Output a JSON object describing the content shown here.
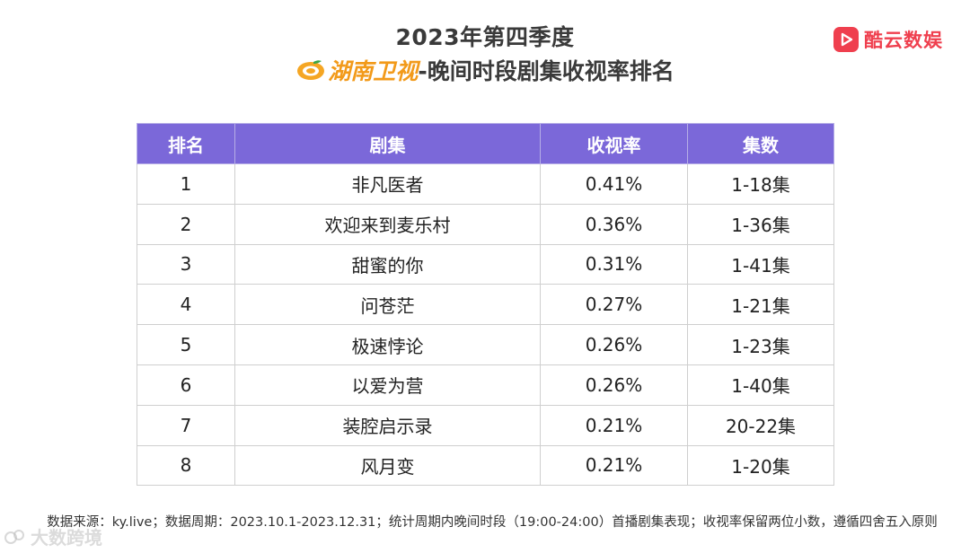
{
  "header": {
    "title_line1": "2023年第四季度",
    "channel_name": "湖南卫视",
    "title_suffix": "-晚间时段剧集收视率排名"
  },
  "brand": {
    "name": "酷云数娱",
    "color": "#ef3f4e"
  },
  "table": {
    "header_color": "#7b68d9",
    "columns": [
      "排名",
      "剧集",
      "收视率",
      "集数"
    ],
    "rows": [
      [
        "1",
        "非凡医者",
        "0.41%",
        "1-18集"
      ],
      [
        "2",
        "欢迎来到麦乐村",
        "0.36%",
        "1-36集"
      ],
      [
        "3",
        "甜蜜的你",
        "0.31%",
        "1-41集"
      ],
      [
        "4",
        "问苍茫",
        "0.27%",
        "1-21集"
      ],
      [
        "5",
        "极速悖论",
        "0.26%",
        "1-23集"
      ],
      [
        "6",
        "以爱为营",
        "0.26%",
        "1-40集"
      ],
      [
        "7",
        "装腔启示录",
        "0.21%",
        "20-22集"
      ],
      [
        "8",
        "风月变",
        "0.21%",
        "1-20集"
      ]
    ]
  },
  "footnote": "数据来源：ky.live；数据周期：2023.10.1-2023.12.31；统计周期内晚间时段（19:00-24:00）首播剧集表现；收视率保留两位小数，遵循四舍五入原则",
  "watermark": "大数跨境",
  "icons": {
    "channel_logo": "mango-logo-icon",
    "brand_logo": "play-logo-icon",
    "watermark_logo": "watermark-logo-icon"
  }
}
